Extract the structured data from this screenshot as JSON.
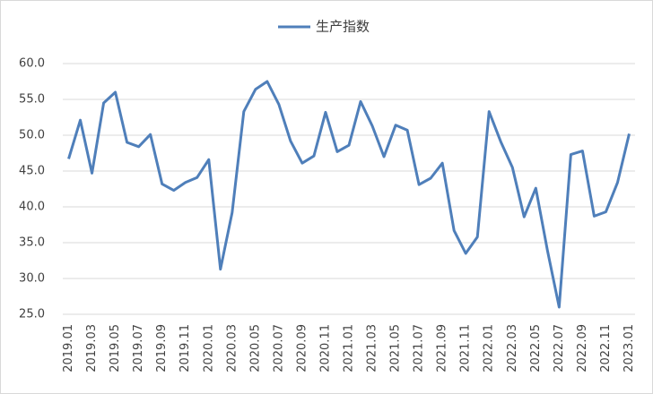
{
  "chart_data": {
    "type": "line",
    "categories": [
      "2019.01",
      null,
      "2019.03",
      null,
      "2019.05",
      null,
      "2019.07",
      null,
      "2019.09",
      null,
      "2019.11",
      null,
      "2020.01",
      null,
      "2020.03",
      null,
      "2020.05",
      null,
      "2020.07",
      null,
      "2020.09",
      null,
      "2020.11",
      null,
      "2021.01",
      null,
      "2021.03",
      null,
      "2021.05",
      null,
      "2021.07",
      null,
      "2021.09",
      null,
      "2021.11",
      null,
      "2022.01",
      null,
      "2022.03",
      null,
      "2022.05",
      null,
      "2022.07",
      null,
      "2022.09",
      null,
      "2022.11",
      null,
      "2023.01"
    ],
    "series": [
      {
        "name": "生产指数",
        "color": "#4f7fba",
        "values": [
          46.7,
          52.1,
          44.7,
          54.5,
          56.0,
          49.0,
          48.4,
          50.1,
          43.2,
          42.3,
          43.4,
          44.1,
          46.6,
          31.3,
          39.2,
          53.3,
          56.4,
          57.5,
          54.3,
          49.2,
          46.1,
          47.1,
          53.2,
          47.7,
          48.6,
          54.7,
          51.3,
          47.0,
          51.4,
          50.7,
          43.1,
          44.0,
          46.1,
          36.7,
          33.5,
          35.8,
          53.3,
          49.1,
          45.5,
          38.6,
          42.6,
          33.9,
          26.0,
          47.3,
          47.8,
          38.7,
          39.3,
          43.4,
          50.2
        ]
      }
    ],
    "ylim": [
      25,
      60
    ],
    "yticks": [
      {
        "value": 25,
        "label": "25.0"
      },
      {
        "value": 30,
        "label": "30.0"
      },
      {
        "value": 35,
        "label": "35.0"
      },
      {
        "value": 40,
        "label": "40.0"
      },
      {
        "value": 45,
        "label": "45.0"
      },
      {
        "value": 50,
        "label": "50.0"
      },
      {
        "value": 55,
        "label": "55.0"
      },
      {
        "value": 60,
        "label": "60.0"
      }
    ],
    "grid": true,
    "legend": "top"
  }
}
